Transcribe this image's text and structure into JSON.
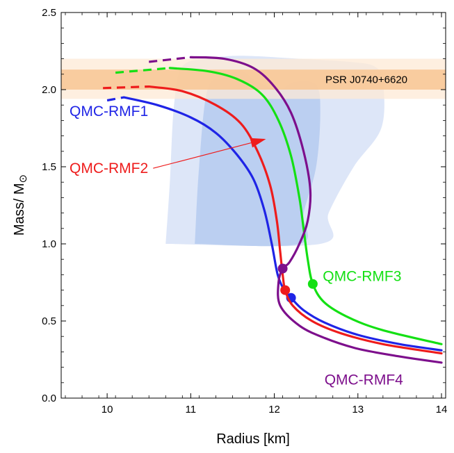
{
  "chart_data": {
    "type": "line",
    "xlabel": "Radius [km]",
    "ylabel_main": "Mass/ M",
    "ylabel_sub": "⊙",
    "xlim": [
      9.5,
      14
    ],
    "ylim": [
      0,
      2.5
    ],
    "xticks": [
      10,
      11,
      12,
      13,
      14
    ],
    "xtick_labels": [
      "10",
      "11",
      "12",
      "13",
      "14"
    ],
    "yticks": [
      0.0,
      0.5,
      1.0,
      1.5,
      2.0,
      2.5
    ],
    "ytick_labels": [
      "0.0",
      "0.5",
      "1.0",
      "1.5",
      "2.0",
      "2.5"
    ],
    "grid": false,
    "bands": [
      {
        "label": "PSR J0740+6620",
        "outer": [
          1.94,
          2.2
        ],
        "inner": [
          2.0,
          2.13
        ],
        "outer_color": "#fde9d6",
        "inner_color": "#f8c593"
      }
    ],
    "regions": [
      {
        "color": "#dbe5f8",
        "points": [
          [
            10.7,
            1.0
          ],
          [
            10.75,
            1.4
          ],
          [
            10.8,
            1.9
          ],
          [
            10.9,
            2.15
          ],
          [
            11.2,
            2.2
          ],
          [
            11.6,
            2.22
          ],
          [
            12.3,
            2.2
          ],
          [
            12.9,
            2.18
          ],
          [
            13.2,
            2.15
          ],
          [
            13.3,
            2.05
          ],
          [
            13.28,
            1.75
          ],
          [
            12.95,
            1.5
          ],
          [
            12.65,
            1.2
          ],
          [
            12.55,
            1.0
          ]
        ]
      },
      {
        "color": "#b8cdf0",
        "points": [
          [
            11.05,
            1.0
          ],
          [
            11.1,
            1.5
          ],
          [
            11.2,
            2.0
          ],
          [
            11.4,
            2.08
          ],
          [
            11.6,
            2.12
          ],
          [
            11.8,
            2.05
          ],
          [
            12.05,
            2.0
          ],
          [
            12.25,
            2.05
          ],
          [
            12.5,
            2.03
          ],
          [
            12.55,
            1.85
          ],
          [
            12.5,
            1.5
          ],
          [
            12.35,
            1.2
          ],
          [
            12.3,
            1.0
          ]
        ]
      }
    ],
    "series": [
      {
        "name": "QMC-RMF1",
        "color": "#1f24e6",
        "solid": [
          [
            10.2,
            1.95
          ],
          [
            10.6,
            1.9
          ],
          [
            11.0,
            1.82
          ],
          [
            11.3,
            1.72
          ],
          [
            11.55,
            1.58
          ],
          [
            11.75,
            1.42
          ],
          [
            11.88,
            1.22
          ],
          [
            11.97,
            1.0
          ],
          [
            12.04,
            0.8
          ],
          [
            12.12,
            0.7
          ],
          [
            12.2,
            0.65
          ],
          [
            12.35,
            0.57
          ],
          [
            12.6,
            0.49
          ],
          [
            13.0,
            0.41
          ],
          [
            13.5,
            0.35
          ],
          [
            14.0,
            0.31
          ]
        ],
        "dashed": [
          [
            10.0,
            1.93
          ],
          [
            10.2,
            1.95
          ]
        ],
        "dot": [
          12.2,
          0.65
        ]
      },
      {
        "name": "QMC-RMF2",
        "color": "#ee1c1c",
        "solid": [
          [
            10.5,
            2.02
          ],
          [
            10.9,
            1.99
          ],
          [
            11.3,
            1.9
          ],
          [
            11.6,
            1.78
          ],
          [
            11.8,
            1.6
          ],
          [
            11.95,
            1.38
          ],
          [
            12.03,
            1.15
          ],
          [
            12.07,
            0.95
          ],
          [
            12.1,
            0.8
          ],
          [
            12.13,
            0.7
          ],
          [
            12.22,
            0.6
          ],
          [
            12.45,
            0.5
          ],
          [
            12.8,
            0.42
          ],
          [
            13.3,
            0.35
          ],
          [
            14.0,
            0.29
          ]
        ],
        "dashed": [
          [
            9.95,
            2.01
          ],
          [
            10.5,
            2.02
          ]
        ],
        "dot": [
          12.13,
          0.7
        ]
      },
      {
        "name": "QMC-RMF3",
        "color": "#14e014",
        "solid": [
          [
            10.75,
            2.14
          ],
          [
            11.2,
            2.12
          ],
          [
            11.55,
            2.07
          ],
          [
            11.85,
            1.97
          ],
          [
            12.05,
            1.8
          ],
          [
            12.2,
            1.57
          ],
          [
            12.3,
            1.3
          ],
          [
            12.35,
            1.1
          ],
          [
            12.4,
            0.9
          ],
          [
            12.46,
            0.74
          ],
          [
            12.6,
            0.62
          ],
          [
            12.9,
            0.52
          ],
          [
            13.3,
            0.44
          ],
          [
            14.0,
            0.35
          ]
        ],
        "dashed": [
          [
            10.1,
            2.11
          ],
          [
            10.75,
            2.14
          ]
        ],
        "dot": [
          12.46,
          0.74
        ]
      },
      {
        "name": "QMC-RMF4",
        "color": "#7d0f8c",
        "solid": [
          [
            11.0,
            2.21
          ],
          [
            11.4,
            2.2
          ],
          [
            11.75,
            2.14
          ],
          [
            12.0,
            2.02
          ],
          [
            12.2,
            1.85
          ],
          [
            12.35,
            1.6
          ],
          [
            12.43,
            1.35
          ],
          [
            12.4,
            1.15
          ],
          [
            12.3,
            1.0
          ],
          [
            12.18,
            0.88
          ],
          [
            12.1,
            0.84
          ],
          [
            12.05,
            0.75
          ],
          [
            12.07,
            0.6
          ],
          [
            12.3,
            0.47
          ],
          [
            12.6,
            0.39
          ],
          [
            13.0,
            0.32
          ],
          [
            13.5,
            0.27
          ],
          [
            14.0,
            0.23
          ]
        ],
        "dashed": [
          [
            10.5,
            2.18
          ],
          [
            11.0,
            2.21
          ]
        ],
        "dot": [
          12.1,
          0.84
        ]
      }
    ],
    "series_labels": [
      {
        "text": "QMC-RMF1",
        "color": "#1f24e6",
        "x": 9.55,
        "y": 1.86
      },
      {
        "text": "QMC-RMF2",
        "color": "#ee1c1c",
        "x": 9.55,
        "y": 1.49
      },
      {
        "text": "QMC-RMF3",
        "color": "#14e014",
        "x": 12.58,
        "y": 0.79
      },
      {
        "text": "QMC-RMF4",
        "color": "#7d0f8c",
        "x": 12.6,
        "y": 0.12
      }
    ],
    "arrow": {
      "from": [
        10.55,
        1.49
      ],
      "to": [
        11.9,
        1.68
      ],
      "color": "#ee1c1c"
    }
  }
}
